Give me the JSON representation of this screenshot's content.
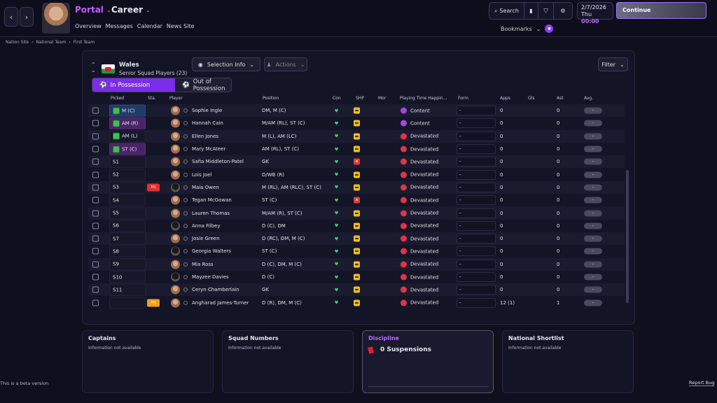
{
  "header": {
    "portal_label": "Portal",
    "career_label": "Career",
    "nav": [
      "Overview",
      "Messages",
      "Calendar",
      "News Site"
    ],
    "search_label": "Search",
    "date": "2/7/2026",
    "day": "Thu",
    "time": "00:00",
    "continue_label": "Continue",
    "bookmarks_label": "Bookmarks"
  },
  "breadcrumb": [
    "Nation Site",
    "National Team",
    "First Team"
  ],
  "squad": {
    "nation": "Wales",
    "subtitle": "Senior Squad Players (23)",
    "selection_info_label": "Selection Info",
    "actions_label": "Actions",
    "filter_label": "Filter",
    "tab_in": "In Possession",
    "tab_out": "Out of Possession"
  },
  "columns": [
    "Picked",
    "Sta.",
    "Player",
    "Position",
    "Con",
    "SHP",
    "Mor",
    "Playing Time Happin...",
    "Form",
    "Apps",
    "Gls",
    "Ast",
    "Avg."
  ],
  "rows": [
    {
      "picked": "M (C)",
      "name": "Sophie Ingle",
      "position": "DM, M (C)",
      "happiness": "Content",
      "form": "-",
      "apps": "0",
      "ast": "0",
      "avg": "-"
    },
    {
      "picked": "AM (R)",
      "name": "Hannah Cain",
      "position": "M/AM (RL), ST (C)",
      "happiness": "Content",
      "form": "-",
      "apps": "0",
      "ast": "0",
      "avg": "-"
    },
    {
      "picked": "AM (L)",
      "name": "Ellen Jones",
      "position": "M (L), AM (LC)",
      "happiness": "Devastated",
      "form": "-",
      "apps": "0",
      "ast": "0",
      "avg": "-"
    },
    {
      "picked": "ST (C)",
      "name": "Mary McAteer",
      "position": "AM (RL), ST (C)",
      "happiness": "Devastated",
      "form": "-",
      "apps": "0",
      "ast": "0",
      "avg": "-"
    },
    {
      "picked": "S1",
      "name": "Safia Middleton-Patel",
      "position": "GK",
      "happiness": "Devastated",
      "form": "-",
      "apps": "0",
      "ast": "0",
      "avg": "-"
    },
    {
      "picked": "S2",
      "name": "Lois Joel",
      "position": "D/WB (R)",
      "happiness": "Devastated",
      "form": "-",
      "apps": "0",
      "ast": "0",
      "avg": "-"
    },
    {
      "picked": "S3",
      "status": "Inj",
      "name": "Maia Owen",
      "position": "M (RL), AM (RLC), ST (C)",
      "happiness": "Devastated",
      "form": "-",
      "apps": "0",
      "ast": "0",
      "avg": "-"
    },
    {
      "picked": "S4",
      "name": "Tegan McGowan",
      "position": "ST (C)",
      "happiness": "Devastated",
      "form": "-",
      "apps": "0",
      "ast": "0",
      "avg": "-"
    },
    {
      "picked": "S5",
      "name": "Lauren Thomas",
      "position": "M/AM (R), ST (C)",
      "happiness": "Devastated",
      "form": "-",
      "apps": "0",
      "ast": "0",
      "avg": "-"
    },
    {
      "picked": "S6",
      "name": "Anna Filbey",
      "position": "D (C), DM",
      "happiness": "Devastated",
      "form": "-",
      "apps": "0",
      "ast": "0",
      "avg": "-"
    },
    {
      "picked": "S7",
      "name": "Josie Green",
      "position": "D (RC), DM, M (C)",
      "happiness": "Devastated",
      "form": "-",
      "apps": "0",
      "ast": "0",
      "avg": "-"
    },
    {
      "picked": "S8",
      "name": "Georgia Walters",
      "position": "ST (C)",
      "happiness": "Devastated",
      "form": "-",
      "apps": "0",
      "ast": "0",
      "avg": "-"
    },
    {
      "picked": "S9",
      "name": "Mia Ross",
      "position": "D (C), DM, M (C)",
      "happiness": "Devastated",
      "form": "-",
      "apps": "0",
      "ast": "0",
      "avg": "-"
    },
    {
      "picked": "S10",
      "name": "Mayzee Davies",
      "position": "D (C)",
      "happiness": "Devastated",
      "form": "-",
      "apps": "0",
      "ast": "0",
      "avg": "-"
    },
    {
      "picked": "S11",
      "name": "Ceryn Chamberlain",
      "position": "GK",
      "happiness": "Devastated",
      "form": "-",
      "apps": "0",
      "ast": "0",
      "avg": "-"
    },
    {
      "picked": "",
      "status": "Inj",
      "name": "Angharad James-Turner",
      "position": "D (R), DM, M (C)",
      "happiness": "Devastated",
      "form": "-",
      "apps": "12 (1)",
      "ast": "1",
      "avg": "-"
    }
  ],
  "cards": {
    "captains": {
      "title": "Captains",
      "text": "Information not available"
    },
    "squad_numbers": {
      "title": "Squad Numbers",
      "text": "Information not available"
    },
    "discipline": {
      "title": "Discipline",
      "suspensions": "0 Suspensions"
    },
    "shortlist": {
      "title": "National Shortlist",
      "text": "Information not available"
    }
  },
  "footer": {
    "beta": "This is a beta version",
    "report": "Report Bug"
  },
  "colors": {
    "accent": "#7a2ee8",
    "content": "#a845e0",
    "devastated": "#e0344a",
    "injury": "#e03030",
    "warning": "#f0a020"
  }
}
